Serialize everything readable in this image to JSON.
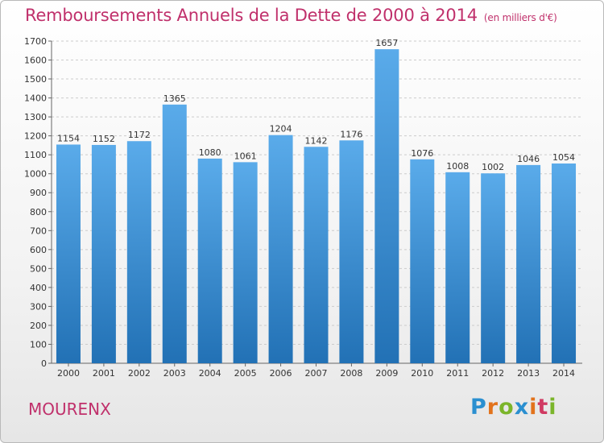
{
  "header": {
    "title": "Remboursements Annuels de la Dette de 2000 à 2014",
    "subtitle": "(en milliers d'€)"
  },
  "footer": {
    "city": "MOURENX",
    "logo": {
      "letters": [
        "P",
        "r",
        "o",
        "x",
        "i",
        "t",
        "i"
      ],
      "colors": [
        "#2a8fd0",
        "#e2731c",
        "#7bb52a",
        "#2a8fd0",
        "#e2731c",
        "#d03a62",
        "#7bb52a"
      ]
    }
  },
  "colors": {
    "bar_top": "#5aabea",
    "bar_bottom": "#2271b5",
    "grid": "#cccccc",
    "axis": "#666666",
    "title": "#c0306b"
  },
  "chart_data": {
    "type": "bar",
    "categories": [
      "2000",
      "2001",
      "2002",
      "2003",
      "2004",
      "2005",
      "2006",
      "2007",
      "2008",
      "2009",
      "2010",
      "2011",
      "2012",
      "2013",
      "2014"
    ],
    "values": [
      1154,
      1152,
      1172,
      1365,
      1080,
      1061,
      1204,
      1142,
      1176,
      1657,
      1076,
      1008,
      1002,
      1046,
      1054
    ],
    "title": "Remboursements Annuels de la Dette de 2000 à 2014",
    "xlabel": "",
    "ylabel": "",
    "ylim": [
      0,
      1700
    ],
    "yticks": [
      0,
      100,
      200,
      300,
      400,
      500,
      600,
      700,
      800,
      900,
      1000,
      1100,
      1200,
      1300,
      1400,
      1500,
      1600,
      1700
    ],
    "grid": true,
    "legend": "none"
  }
}
